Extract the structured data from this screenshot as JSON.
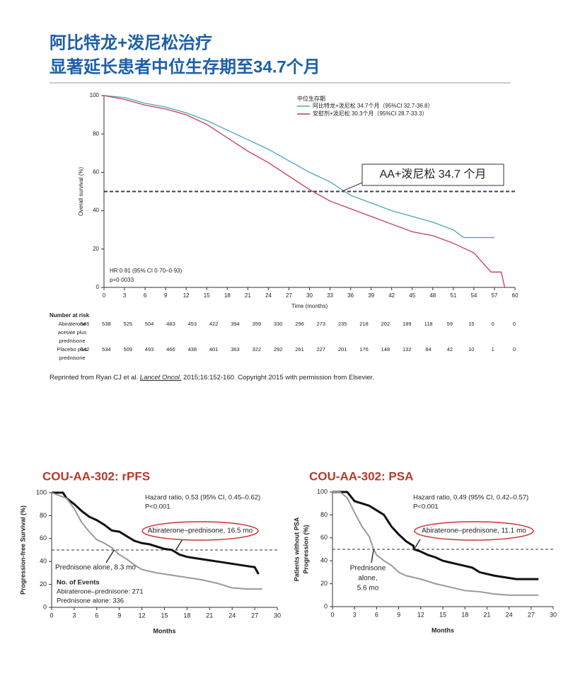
{
  "headline": [
    "阿比特龙+泼尼松治疗",
    "显著延长患者中位生存期至34.7个月"
  ],
  "citation": {
    "before": "Reprinted from Ryan CJ et al. ",
    "journal": "Lancet Oncol.",
    "after": " 2015;16:152-160. Copyright 2015 with permission from Elsevier."
  },
  "chart_data": [
    {
      "type": "line",
      "xlabel": "Time (months)",
      "ylabel": "Overall survival (%)",
      "xlim": [
        0,
        60
      ],
      "xticks": [
        0,
        3,
        6,
        9,
        12,
        15,
        18,
        21,
        24,
        27,
        30,
        33,
        36,
        39,
        42,
        45,
        48,
        51,
        54,
        57,
        60
      ],
      "ylim": [
        0,
        100
      ],
      "yticks": [
        0,
        20,
        40,
        60,
        80,
        100
      ],
      "legend_title": "中位生存期",
      "legend": "upper right",
      "hline": 50,
      "series": [
        {
          "name": "阿比特龙+泼尼松 34.7个月（95%CI 32.7-36.8）",
          "color": "#4aa8b0",
          "x": [
            0,
            3,
            6,
            9,
            12,
            15,
            18,
            21,
            24,
            27,
            30,
            33,
            36,
            39,
            42,
            45,
            48,
            51,
            52.5,
            57
          ],
          "values": [
            100,
            99,
            96,
            94,
            91,
            87,
            82,
            77,
            72,
            66,
            60,
            55,
            48,
            44,
            40,
            37,
            34,
            30,
            26,
            26
          ]
        },
        {
          "name": "安慰剂+泼尼松 30.3个月（95%CI 28.7-33.3）",
          "color": "#c43a5c",
          "x": [
            0,
            3,
            6,
            9,
            12,
            15,
            18,
            21,
            24,
            27,
            30,
            33,
            36,
            39,
            42,
            45,
            48,
            51,
            54,
            56.5,
            58,
            58.5
          ],
          "values": [
            100,
            98,
            95,
            93,
            90,
            85,
            78,
            71,
            65,
            58,
            51,
            45,
            41,
            37,
            33,
            29,
            27,
            23,
            18,
            8,
            8,
            0
          ]
        }
      ],
      "annotations": [
        {
          "text": "AA+泼尼松 34.7 个月",
          "x": 34.7,
          "y": 50
        }
      ],
      "notes": [
        "HR 0·81 (95% CI 0·70–0·93)",
        "p=0·0033"
      ],
      "number_at_risk": {
        "title": "Number at risk",
        "rows": [
          {
            "label": [
              "Abiraterone",
              "acetate plus",
              "prednisone"
            ],
            "values": [
              "546",
              "538",
              "525",
              "504",
              "483",
              "453",
              "422",
              "394",
              "359",
              "330",
              "296",
              "273",
              "235",
              "218",
              "202",
              "189",
              "118",
              "59",
              "15",
              "0",
              "0"
            ]
          },
          {
            "label": [
              "Placebo plus",
              "prednisone"
            ],
            "values": [
              "542",
              "534",
              "509",
              "493",
              "466",
              "438",
              "401",
              "363",
              "322",
              "292",
              "261",
              "227",
              "201",
              "176",
              "148",
              "132",
              "84",
              "42",
              "10",
              "1",
              "0"
            ]
          }
        ]
      }
    },
    {
      "type": "line",
      "title": "COU-AA-302: rPFS",
      "xlabel": "Months",
      "ylabel": "Progression-free Survival (%)",
      "xlim": [
        0,
        30
      ],
      "xticks": [
        0,
        3,
        6,
        9,
        12,
        15,
        18,
        21,
        24,
        27,
        30
      ],
      "ylim": [
        0,
        100
      ],
      "yticks": [
        0,
        20,
        40,
        60,
        80,
        100
      ],
      "hline": 50,
      "series": [
        {
          "color": "#111111",
          "x": [
            0,
            1.5,
            2,
            3,
            4,
            5,
            6,
            7,
            8,
            9,
            10,
            11,
            12,
            13,
            14,
            15,
            16,
            17,
            18,
            19,
            20,
            21,
            22,
            23,
            24,
            25,
            26,
            27,
            27.5
          ],
          "values": [
            100,
            100,
            95,
            90,
            84,
            79,
            76,
            72,
            67,
            66,
            62,
            58,
            56,
            55,
            53,
            51,
            50,
            46,
            44,
            43,
            42,
            41,
            40,
            39,
            38,
            37,
            36,
            35,
            29
          ]
        },
        {
          "color": "#999999",
          "x": [
            0,
            2,
            3,
            4,
            5,
            6,
            7,
            8,
            8.3,
            9,
            10,
            11,
            12,
            14,
            16,
            18,
            20,
            22,
            24,
            26,
            28
          ],
          "values": [
            100,
            95,
            86,
            74,
            66,
            59,
            56,
            52,
            50,
            46,
            42,
            37,
            33,
            30,
            28,
            26,
            24,
            21,
            17,
            16,
            16
          ]
        }
      ],
      "annotations": [
        {
          "text": "Abiraterone–prednisone, 16.5 mo",
          "x": 16.5,
          "y": 50,
          "circled": true
        },
        {
          "text": "Prednisone alone, 8.3 mo",
          "x": 8.3,
          "y": 50
        }
      ],
      "notes": [
        "Hazard ratio, 0.53 (95% CI, 0.45–0.62)",
        "P<0.001",
        "No. of Events",
        "Abiraterone–prednisone: 271",
        "Prednisone alone: 336"
      ]
    },
    {
      "type": "line",
      "title": "COU-AA-302: PSA",
      "xlabel": "Months",
      "ylabel": [
        "Patients without PSA",
        "Progression (%)"
      ],
      "xlim": [
        0,
        30
      ],
      "xticks": [
        0,
        3,
        6,
        9,
        12,
        15,
        18,
        21,
        24,
        27,
        30
      ],
      "ylim": [
        0,
        100
      ],
      "yticks": [
        0,
        20,
        40,
        60,
        80,
        100
      ],
      "hline": 50,
      "series": [
        {
          "color": "#111111",
          "x": [
            0,
            2,
            3,
            4,
            5,
            6,
            7,
            8,
            9,
            10,
            11,
            11.1,
            12,
            13,
            14,
            15,
            17,
            19,
            20,
            22,
            24,
            25,
            28
          ],
          "values": [
            100,
            100,
            92,
            90,
            88,
            84,
            80,
            70,
            63,
            57,
            53,
            50,
            48,
            45,
            43,
            40,
            37,
            34,
            30,
            27,
            25,
            24,
            24
          ]
        },
        {
          "color": "#999999",
          "x": [
            0,
            1,
            2,
            3,
            4,
            5,
            5.6,
            6,
            7,
            8,
            9,
            10,
            12,
            14,
            16,
            18,
            20,
            22,
            24,
            26,
            28
          ],
          "values": [
            100,
            100,
            95,
            82,
            70,
            61,
            50,
            45,
            40,
            36,
            30,
            27,
            24,
            20,
            17,
            14,
            13,
            11,
            10,
            10,
            10
          ]
        }
      ],
      "annotations": [
        {
          "text": "Abiraterone–prednisone, 11.1 mo",
          "x": 11.1,
          "y": 50,
          "circled": true
        },
        {
          "text": [
            "Prednisone",
            "alone,",
            "5.6 mo"
          ],
          "x": 5.6,
          "y": 50
        }
      ],
      "notes": [
        "Hazard ratio, 0.49 (95% CI, 0.42–0.57)",
        "P<0.001"
      ]
    }
  ]
}
